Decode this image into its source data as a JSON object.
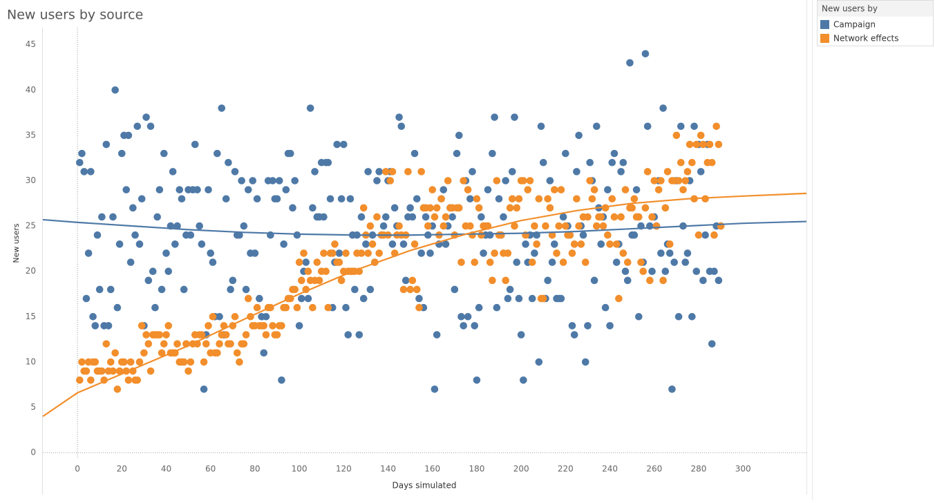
{
  "chart_data": {
    "type": "scatter",
    "title": "New users by source",
    "xlabel": "Days simulated",
    "ylabel": "New users",
    "legend_title": "New users by",
    "legend": "top-right",
    "xlim": [
      -15.6,
      328.6
    ],
    "ylim": [
      -0.6,
      46.5
    ],
    "xticks": [
      0,
      20,
      40,
      60,
      80,
      100,
      120,
      140,
      160,
      180,
      200,
      220,
      240,
      260,
      280,
      300
    ],
    "yticks": [
      0,
      5,
      10,
      15,
      20,
      25,
      30,
      35,
      40,
      45
    ],
    "x": [
      1,
      2,
      3,
      4,
      5,
      6,
      7,
      8,
      9,
      10,
      11,
      12,
      13,
      14,
      15,
      16,
      17,
      18,
      19,
      20,
      21,
      22,
      23,
      24,
      25,
      26,
      27,
      28,
      29,
      30,
      31,
      32,
      33,
      34,
      35,
      36,
      37,
      38,
      39,
      40,
      41,
      42,
      43,
      44,
      45,
      46,
      47,
      48,
      49,
      50,
      51,
      52,
      53,
      54,
      55,
      56,
      57,
      58,
      59,
      60,
      61,
      62,
      63,
      64,
      65,
      66,
      67,
      68,
      69,
      70,
      71,
      72,
      73,
      74,
      75,
      76,
      77,
      78,
      79,
      80,
      81,
      82,
      83,
      84,
      85,
      86,
      87,
      88,
      89,
      90,
      91,
      92,
      93,
      94,
      95,
      96,
      97,
      98,
      99,
      100,
      101,
      102,
      103,
      104,
      105,
      106,
      107,
      108,
      109,
      110,
      111,
      112,
      113,
      114,
      115,
      116,
      117,
      118,
      119,
      120,
      121,
      122,
      123,
      124,
      125,
      126,
      127,
      128,
      129,
      130,
      131,
      132,
      133,
      134,
      135,
      136,
      137,
      138,
      139,
      140,
      141,
      142,
      143,
      144,
      145,
      146,
      147,
      148,
      149,
      150,
      151,
      152,
      153,
      154,
      155,
      156,
      157,
      158,
      159,
      160,
      161,
      162,
      163,
      164,
      165,
      166,
      167,
      168,
      169,
      170,
      171,
      172,
      173,
      174,
      175,
      176,
      177,
      178,
      179,
      180,
      181,
      182,
      183,
      184,
      185,
      186,
      187,
      188,
      189,
      190,
      191,
      192,
      193,
      194,
      195,
      196,
      197,
      198,
      199,
      200,
      201,
      202,
      203,
      204,
      205,
      206,
      207,
      208,
      209,
      210,
      211,
      212,
      213,
      214,
      215,
      216,
      217,
      218,
      219,
      220,
      221,
      222,
      223,
      224,
      225,
      226,
      227,
      228,
      229,
      230,
      231,
      232,
      233,
      234,
      235,
      236,
      237,
      238,
      239,
      240,
      241,
      242,
      243,
      244,
      245,
      246,
      247,
      248,
      249,
      250,
      251,
      252,
      253,
      254,
      255,
      256,
      257,
      258,
      259,
      260,
      261,
      262,
      263,
      264,
      265,
      266,
      267,
      268,
      269,
      270,
      271,
      272,
      273,
      274,
      275,
      276,
      277,
      278,
      279,
      280,
      281,
      282,
      283,
      284,
      285,
      286,
      287,
      288,
      289,
      290
    ],
    "series": [
      {
        "name": "Campaign",
        "color": "#4e79a7",
        "values": [
          32,
          33,
          31,
          17,
          22,
          31,
          15,
          14,
          24,
          18,
          26,
          14,
          34,
          14,
          18,
          26,
          40,
          16,
          23,
          33,
          35,
          29,
          35,
          21,
          27,
          24,
          36,
          23,
          28,
          14,
          37,
          19,
          36,
          20,
          16,
          26,
          29,
          18,
          33,
          22,
          20,
          25,
          31,
          23,
          25,
          29,
          28,
          18,
          24,
          29,
          24,
          29,
          34,
          29,
          25,
          23,
          7,
          13,
          29,
          22,
          21,
          15,
          33,
          15,
          38,
          13,
          28,
          32,
          18,
          19,
          31,
          24,
          24,
          30,
          25,
          18,
          29,
          22,
          30,
          22,
          28,
          17,
          15,
          11,
          15,
          30,
          24,
          30,
          28,
          28,
          30,
          8,
          23,
          29,
          33,
          33,
          27,
          30,
          24,
          14,
          17,
          20,
          21,
          17,
          38,
          27,
          31,
          26,
          26,
          32,
          26,
          32,
          32,
          28,
          16,
          21,
          34,
          22,
          28,
          34,
          16,
          13,
          28,
          24,
          18,
          24,
          13,
          26,
          17,
          23,
          31,
          18,
          24,
          21,
          30,
          31,
          24,
          25,
          26,
          30,
          31,
          23,
          27,
          25,
          37,
          36,
          23,
          19,
          26,
          27,
          26,
          33,
          28,
          17,
          22,
          16,
          26,
          24,
          22,
          25,
          7,
          13,
          23,
          28,
          29,
          23,
          25,
          27,
          26,
          18,
          33,
          35,
          15,
          14,
          30,
          15,
          28,
          31,
          14,
          8,
          16,
          26,
          22,
          24,
          29,
          24,
          33,
          37,
          16,
          28,
          24,
          26,
          30,
          17,
          18,
          31,
          37,
          21,
          17,
          13,
          8,
          23,
          21,
          24,
          17,
          22,
          24,
          10,
          36,
          32,
          17,
          19,
          30,
          21,
          23,
          17,
          17,
          17,
          26,
          33,
          25,
          24,
          14,
          13,
          31,
          35,
          25,
          24,
          10,
          14,
          32,
          30,
          19,
          36,
          27,
          23,
          26,
          16,
          29,
          14,
          32,
          33,
          21,
          23,
          31,
          32,
          20,
          19,
          43,
          24,
          24,
          29,
          15,
          25,
          21,
          44,
          36,
          25,
          20,
          26,
          25,
          30,
          22,
          38,
          20,
          23,
          22,
          7,
          21,
          30,
          15,
          36,
          25,
          21,
          22,
          30,
          15,
          36,
          20,
          34,
          31,
          19,
          24,
          34,
          20,
          12,
          20,
          25,
          19,
          25
        ]
      },
      {
        "name": "Network effects",
        "color": "#f28e2b",
        "values": [
          8,
          10,
          9,
          9,
          10,
          8,
          10,
          10,
          9,
          9,
          9,
          8,
          12,
          9,
          10,
          9,
          11,
          7,
          9,
          10,
          10,
          9,
          8,
          10,
          9,
          8,
          8,
          10,
          14,
          11,
          13,
          12,
          9,
          13,
          13,
          13,
          13,
          11,
          12,
          13,
          14,
          11,
          11,
          11,
          12,
          10,
          10,
          10,
          12,
          9,
          10,
          12,
          13,
          12,
          13,
          13,
          10,
          12,
          14,
          11,
          15,
          11,
          11,
          12,
          13,
          14,
          13,
          12,
          12,
          14,
          15,
          11,
          10,
          12,
          12,
          13,
          17,
          15,
          14,
          14,
          16,
          14,
          14,
          14,
          13,
          16,
          16,
          14,
          13,
          13,
          14,
          14,
          16,
          16,
          17,
          17,
          18,
          18,
          16,
          21,
          19,
          22,
          18,
          20,
          19,
          16,
          19,
          21,
          19,
          20,
          22,
          20,
          16,
          22,
          22,
          23,
          21,
          21,
          19,
          20,
          22,
          20,
          20,
          20,
          20,
          22,
          20,
          22,
          27,
          24,
          22,
          25,
          23,
          21,
          26,
          22,
          24,
          24,
          31,
          24,
          30,
          31,
          22,
          24,
          25,
          24,
          18,
          24,
          31,
          18,
          19,
          23,
          18,
          16,
          31,
          27,
          27,
          25,
          27,
          29,
          26,
          27,
          24,
          28,
          25,
          26,
          30,
          27,
          27,
          24,
          27,
          27,
          21,
          30,
          25,
          29,
          25,
          24,
          21,
          28,
          27,
          24,
          25,
          25,
          25,
          21,
          19,
          22,
          30,
          24,
          24,
          22,
          19,
          22,
          27,
          28,
          25,
          27,
          28,
          30,
          30,
          24,
          29,
          30,
          21,
          25,
          23,
          28,
          17,
          17,
          25,
          28,
          27,
          24,
          29,
          22,
          25,
          29,
          21,
          25,
          24,
          24,
          22,
          23,
          28,
          25,
          23,
          26,
          21,
          26,
          30,
          28,
          29,
          25,
          26,
          26,
          25,
          27,
          24,
          23,
          28,
          26,
          23,
          17,
          26,
          22,
          29,
          21,
          27,
          27,
          28,
          26,
          26,
          21,
          20,
          27,
          31,
          19,
          26,
          30,
          25,
          29,
          30,
          19,
          27,
          31,
          23,
          30,
          30,
          35,
          30,
          32,
          29,
          30,
          31,
          34,
          32,
          28,
          34,
          24,
          35,
          34,
          28,
          32,
          34,
          32,
          24,
          36,
          34,
          25
        ]
      }
    ],
    "trendlines": [
      {
        "color": "#4e79a7",
        "x": [
          -15.6,
          0,
          25,
          50,
          75,
          100,
          125,
          150,
          175,
          200,
          225,
          250,
          275,
          300,
          328.6
        ],
        "values": [
          25.7,
          25.4,
          25.0,
          24.6,
          24.3,
          24.1,
          24.0,
          24.0,
          24.1,
          24.2,
          24.4,
          24.7,
          25.0,
          25.3,
          25.5
        ]
      },
      {
        "color": "#f28e2b",
        "x": [
          -15.6,
          0,
          25,
          50,
          75,
          100,
          125,
          150,
          175,
          200,
          225,
          250,
          275,
          300,
          328.6
        ],
        "values": [
          4.0,
          6.6,
          9.2,
          11.8,
          14.7,
          17.5,
          20.1,
          22.3,
          24.1,
          25.6,
          26.7,
          27.5,
          28.0,
          28.3,
          28.6
        ]
      }
    ]
  }
}
